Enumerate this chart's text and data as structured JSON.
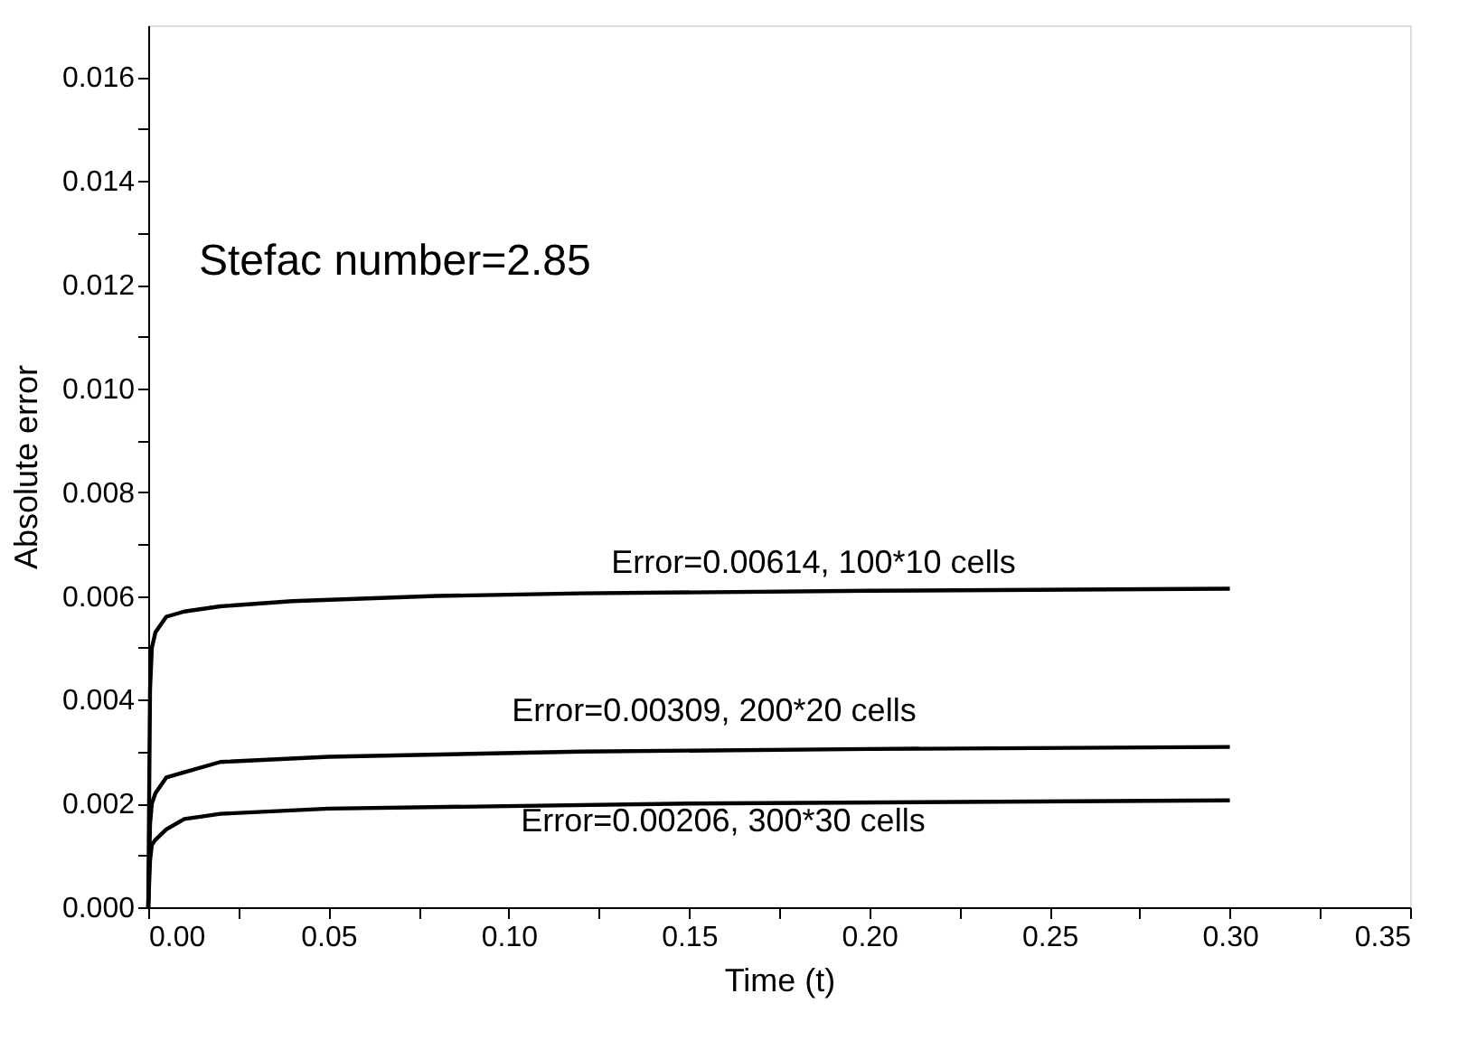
{
  "chart_data": {
    "type": "line",
    "xlabel": "Time (t)",
    "ylabel": "Absolute error",
    "xlim": [
      0,
      0.35
    ],
    "xticks": [
      {
        "value": 0,
        "label": "0.00"
      },
      0.05,
      {
        "value": 0.1,
        "label": "0.10"
      },
      0.15,
      {
        "value": 0.2,
        "label": "0.20"
      },
      0.25,
      {
        "value": 0.3,
        "label": "0.30"
      },
      0.35,
      {
        "value": 0.025,
        "label": null
      },
      {
        "value": 0.075,
        "label": null
      },
      {
        "value": 0.125,
        "label": null
      },
      {
        "value": 0.175,
        "label": null
      },
      {
        "value": 0.225,
        "label": null
      },
      {
        "value": 0.275,
        "label": null
      },
      {
        "value": 0.325,
        "label": null
      }
    ],
    "ylim": [
      0,
      0.017
    ],
    "yticks": [
      {
        "value": 0,
        "label": "0.000"
      },
      0.002,
      0.004,
      0.006,
      0.008,
      {
        "value": 0.01,
        "label": "0.010"
      },
      0.012,
      0.014,
      0.016,
      {
        "value": 0.001,
        "label": null
      },
      {
        "value": 0.003,
        "label": null
      },
      {
        "value": 0.005,
        "label": null
      },
      {
        "value": 0.007,
        "label": null
      },
      {
        "value": 0.009,
        "label": null
      },
      {
        "value": 0.011,
        "label": null
      },
      {
        "value": 0.013,
        "label": null
      },
      {
        "value": 0.015,
        "label": null
      }
    ],
    "grid": false,
    "marker": "none",
    "line_style": "solid",
    "series": [
      {
        "color": "#000000",
        "x": [
          0,
          0.0005,
          0.001,
          0.002,
          0.005,
          0.01,
          0.02,
          0.04,
          0.08,
          0.12,
          0.2,
          0.3
        ],
        "values": [
          0,
          0.0042,
          0.005,
          0.0053,
          0.0056,
          0.0057,
          0.0058,
          0.0059,
          0.006,
          0.00605,
          0.0061,
          0.00614
        ]
      },
      {
        "color": "#000000",
        "x": [
          0,
          0.0005,
          0.001,
          0.002,
          0.005,
          0.01,
          0.02,
          0.05,
          0.12,
          0.2,
          0.3
        ],
        "values": [
          0,
          0.0016,
          0.002,
          0.0022,
          0.0025,
          0.0026,
          0.0028,
          0.0029,
          0.003,
          0.00305,
          0.00309
        ]
      },
      {
        "color": "#000000",
        "x": [
          0,
          0.0005,
          0.001,
          0.002,
          0.005,
          0.01,
          0.02,
          0.05,
          0.15,
          0.3
        ],
        "values": [
          0,
          0.0009,
          0.0012,
          0.0013,
          0.0015,
          0.0017,
          0.0018,
          0.0019,
          0.002,
          0.00206
        ]
      }
    ],
    "annotations": [
      "Stefac number=2.85",
      "Error=0.00614, 100*10 cells",
      "Error=0.00309, 200*20 cells",
      "Error=0.00206, 300*30 cells"
    ]
  }
}
